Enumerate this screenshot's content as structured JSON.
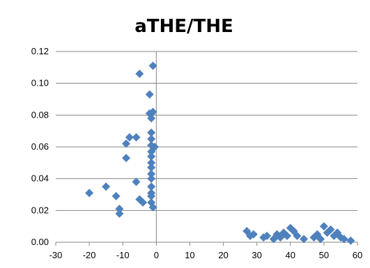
{
  "chart_data": {
    "type": "scatter",
    "title": "aTHE/THE",
    "xlabel": "",
    "ylabel": "",
    "xlim": [
      -30,
      60
    ],
    "ylim": [
      0,
      0.12
    ],
    "x_ticks": [
      -30,
      -20,
      -10,
      0,
      10,
      20,
      30,
      40,
      50,
      60
    ],
    "y_ticks": [
      0.0,
      0.02,
      0.04,
      0.06,
      0.08,
      0.1,
      0.12
    ],
    "x_tick_labels": [
      "-30",
      "-20",
      "-10",
      "0",
      "10",
      "20",
      "30",
      "40",
      "50",
      "60"
    ],
    "y_tick_labels": [
      "0.00",
      "0.02",
      "0.04",
      "0.06",
      "0.08",
      "0.10",
      "0.12"
    ],
    "grid": "horizontal",
    "marker": "diamond",
    "marker_color": "#4F81BD",
    "series": [
      {
        "points": [
          [
            -20,
            0.031
          ],
          [
            -15,
            0.035
          ],
          [
            -12,
            0.029
          ],
          [
            -11,
            0.021
          ],
          [
            -11,
            0.018
          ],
          [
            -9,
            0.062
          ],
          [
            -8,
            0.066
          ],
          [
            -9,
            0.053
          ],
          [
            -6,
            0.066
          ],
          [
            -6,
            0.038
          ],
          [
            -5,
            0.027
          ],
          [
            -5,
            0.106
          ],
          [
            -4,
            0.025
          ],
          [
            -2,
            0.093
          ],
          [
            -2,
            0.081
          ],
          [
            -1.5,
            0.078
          ],
          [
            -1,
            0.111
          ],
          [
            -1,
            0.082
          ],
          [
            -1.5,
            0.069
          ],
          [
            -1.5,
            0.065
          ],
          [
            -1.5,
            0.061
          ],
          [
            -1.5,
            0.057
          ],
          [
            -1.5,
            0.054
          ],
          [
            -1.5,
            0.05
          ],
          [
            -1.5,
            0.047
          ],
          [
            -1.5,
            0.043
          ],
          [
            -1.5,
            0.04
          ],
          [
            -1.5,
            0.035
          ],
          [
            -1.5,
            0.031
          ],
          [
            -1.5,
            0.029
          ],
          [
            -1.5,
            0.025
          ],
          [
            -1,
            0.022
          ],
          [
            -0.5,
            0.06
          ],
          [
            27,
            0.007
          ],
          [
            28,
            0.004
          ],
          [
            29,
            0.005
          ],
          [
            32,
            0.003
          ],
          [
            33,
            0.004
          ],
          [
            35,
            0.002
          ],
          [
            36,
            0.005
          ],
          [
            37,
            0.003
          ],
          [
            38,
            0.006
          ],
          [
            39,
            0.004
          ],
          [
            40,
            0.009
          ],
          [
            41,
            0.007
          ],
          [
            42,
            0.004
          ],
          [
            44,
            0.002
          ],
          [
            47,
            0.003
          ],
          [
            48,
            0.005
          ],
          [
            49,
            0.002
          ],
          [
            50,
            0.01
          ],
          [
            51,
            0.006
          ],
          [
            52,
            0.008
          ],
          [
            53,
            0.004
          ],
          [
            54,
            0.006
          ],
          [
            55,
            0.003
          ],
          [
            56,
            0.002
          ],
          [
            58,
            0.001
          ]
        ]
      }
    ]
  }
}
